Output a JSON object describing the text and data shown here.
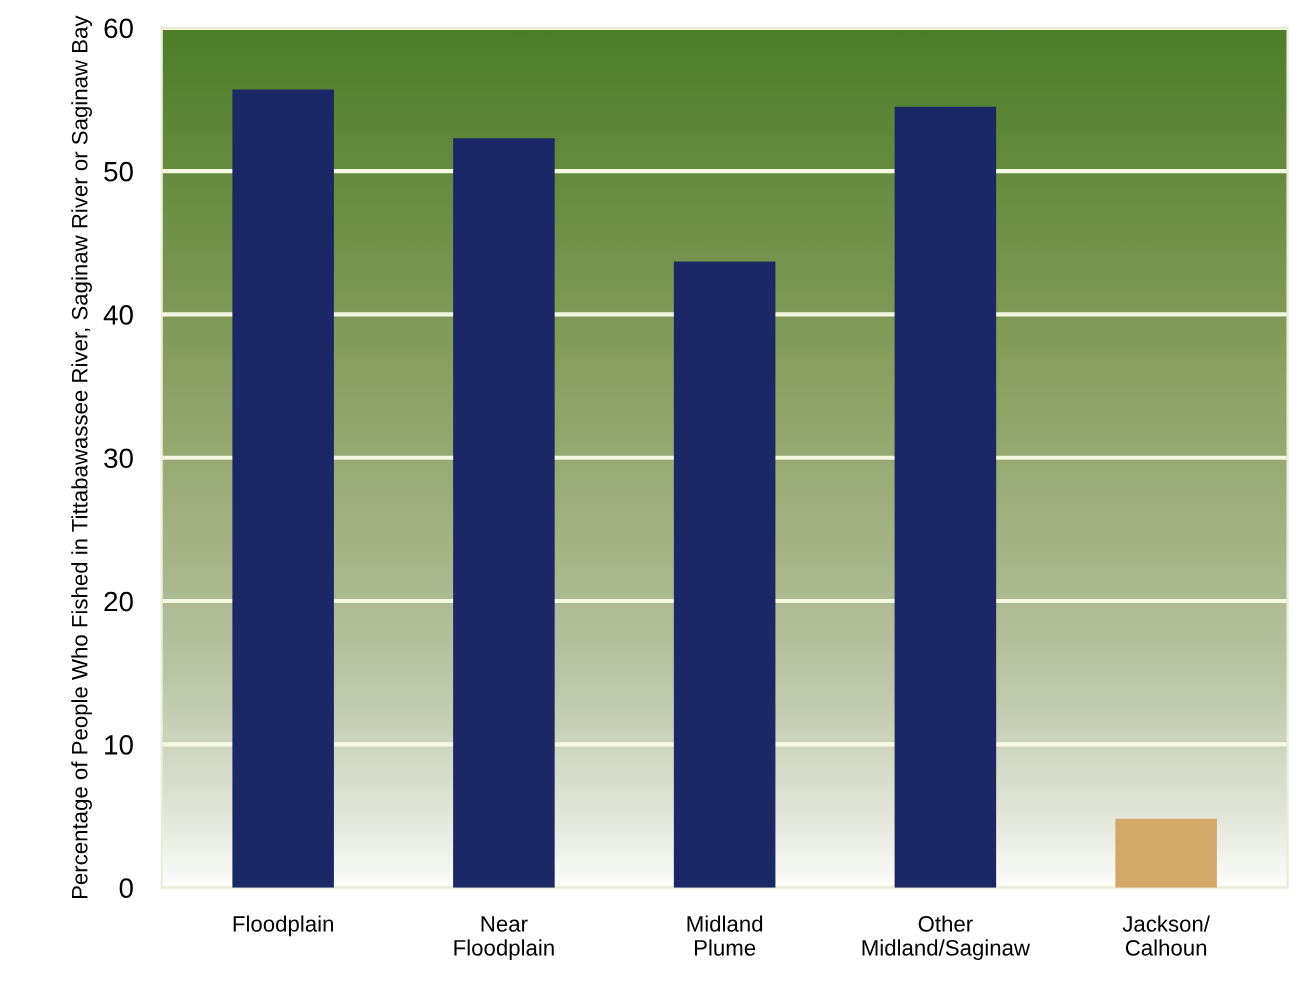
{
  "chart_data": {
    "type": "bar",
    "ylabel": "Percentage of People Who Fished in Tittabawassee River, Saginaw River or Saginaw Bay",
    "categories": [
      "Floodplain",
      "Near\nFloodplain",
      "Midland\nPlume",
      "Other\nMidland/Saginaw",
      "Jackson/\nCalhoun"
    ],
    "values": [
      55.7,
      52.3,
      43.7,
      54.5,
      4.8
    ],
    "colors": [
      "#1c2866",
      "#1c2866",
      "#1c2866",
      "#1c2866",
      "#d4a868"
    ],
    "ylim": [
      0,
      60
    ],
    "yticks": [
      0,
      10,
      20,
      30,
      40,
      50,
      60
    ],
    "grid": "y"
  }
}
